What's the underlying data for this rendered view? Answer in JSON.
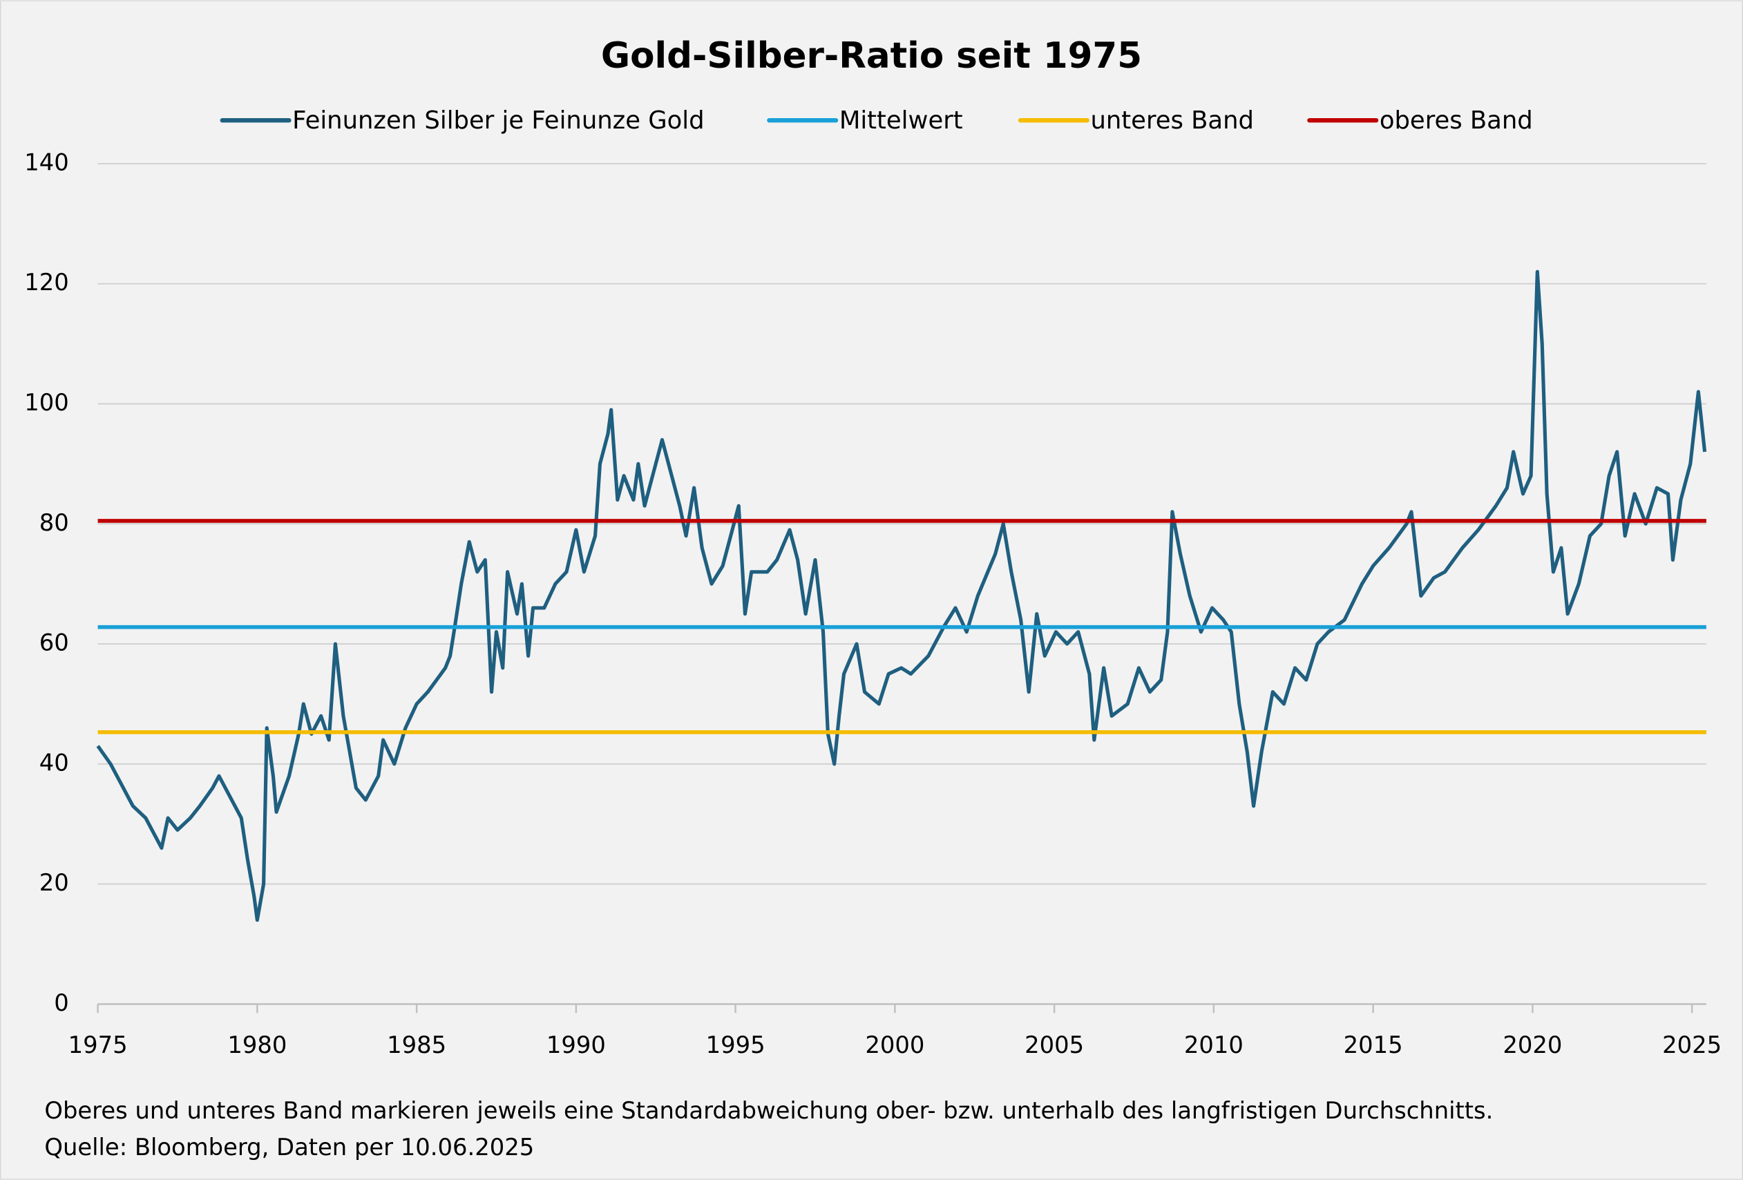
{
  "chart_data": {
    "type": "line",
    "title": "Gold-Silber-Ratio seit 1975",
    "notes": [
      "Oberes und unteres Band markieren jeweils eine Standardabweichung ober- bzw. unterhalb des langfristigen Durchschnitts.",
      "Quelle: Bloomberg, Daten per 10.06.2025"
    ],
    "x": [
      1975.0,
      1975.4,
      1975.8,
      1976.1,
      1976.5,
      1977.0,
      1977.2,
      1977.5,
      1977.9,
      1978.2,
      1978.6,
      1978.8,
      1979.3,
      1979.5,
      1979.7,
      1979.9,
      1980.0,
      1980.2,
      1980.3,
      1980.5,
      1980.6,
      1981.0,
      1981.3,
      1981.45,
      1981.7,
      1982.0,
      1982.25,
      1982.45,
      1982.7,
      1982.9,
      1983.1,
      1983.4,
      1983.8,
      1983.95,
      1984.3,
      1984.65,
      1985.0,
      1985.35,
      1985.9,
      1986.05,
      1986.2,
      1986.4,
      1986.65,
      1986.9,
      1987.15,
      1987.35,
      1987.5,
      1987.7,
      1987.85,
      1988.15,
      1988.3,
      1988.5,
      1988.65,
      1989.0,
      1989.35,
      1989.7,
      1990.0,
      1990.25,
      1990.6,
      1990.75,
      1991.0,
      1991.1,
      1991.3,
      1991.5,
      1991.8,
      1991.95,
      1992.15,
      1992.5,
      1992.7,
      1993.0,
      1993.25,
      1993.45,
      1993.7,
      1993.95,
      1994.25,
      1994.6,
      1994.95,
      1995.1,
      1995.3,
      1995.5,
      1996.0,
      1996.3,
      1996.7,
      1996.95,
      1997.2,
      1997.5,
      1997.75,
      1997.9,
      1998.1,
      1998.25,
      1998.4,
      1998.8,
      1999.05,
      1999.5,
      1999.8,
      2000.2,
      2000.5,
      2001.05,
      2001.55,
      2001.9,
      2002.25,
      2002.6,
      2003.15,
      2003.4,
      2003.65,
      2003.95,
      2004.2,
      2004.45,
      2004.7,
      2005.05,
      2005.4,
      2005.75,
      2006.1,
      2006.25,
      2006.55,
      2006.8,
      2007.3,
      2007.65,
      2008.0,
      2008.35,
      2008.55,
      2008.7,
      2008.95,
      2009.25,
      2009.6,
      2009.95,
      2010.3,
      2010.55,
      2010.8,
      2011.05,
      2011.25,
      2011.5,
      2011.85,
      2012.2,
      2012.55,
      2012.9,
      2013.25,
      2013.6,
      2014.1,
      2014.65,
      2015.0,
      2015.5,
      2016.05,
      2016.2,
      2016.5,
      2016.9,
      2017.25,
      2017.8,
      2018.3,
      2018.85,
      2019.2,
      2019.4,
      2019.7,
      2019.95,
      2020.15,
      2020.3,
      2020.45,
      2020.65,
      2020.9,
      2021.1,
      2021.45,
      2021.8,
      2022.15,
      2022.4,
      2022.65,
      2022.9,
      2023.2,
      2023.55,
      2023.9,
      2024.25,
      2024.4,
      2024.65,
      2024.95,
      2025.2,
      2025.4
    ],
    "series": [
      {
        "name": "Feinunzen Silber je Feinunze Gold",
        "color": "#1f5f80",
        "values": [
          43,
          40,
          36,
          33,
          31,
          26,
          31,
          29,
          31,
          33,
          36,
          38,
          33,
          31,
          24,
          18,
          14,
          20,
          46,
          38,
          32,
          38,
          45,
          50,
          45,
          48,
          44,
          60,
          48,
          42,
          36,
          34,
          38,
          44,
          40,
          46,
          50,
          52,
          56,
          58,
          63,
          70,
          77,
          72,
          74,
          52,
          62,
          56,
          72,
          65,
          70,
          58,
          66,
          66,
          70,
          72,
          79,
          72,
          78,
          90,
          95,
          99,
          84,
          88,
          84,
          90,
          83,
          90,
          94,
          88,
          83,
          78,
          86,
          76,
          70,
          73,
          80,
          83,
          65,
          72,
          72,
          74,
          79,
          74,
          65,
          74,
          62,
          45,
          40,
          48,
          55,
          60,
          52,
          50,
          55,
          56,
          55,
          58,
          63,
          66,
          62,
          68,
          75,
          80,
          72,
          64,
          52,
          65,
          58,
          62,
          60,
          62,
          55,
          44,
          56,
          48,
          50,
          56,
          52,
          54,
          62,
          82,
          75,
          68,
          62,
          66,
          64,
          62,
          50,
          42,
          33,
          42,
          52,
          50,
          56,
          54,
          60,
          62,
          64,
          70,
          73,
          76,
          80,
          82,
          68,
          71,
          72,
          76,
          79,
          83,
          86,
          92,
          85,
          88,
          122,
          110,
          85,
          72,
          76,
          65,
          70,
          78,
          80,
          88,
          92,
          78,
          85,
          80,
          86,
          85,
          74,
          84,
          90,
          102,
          92
        ]
      },
      {
        "name": "Mittelwert",
        "color": "#1aa0d8",
        "value": 62.8
      },
      {
        "name": "unteres Band",
        "color": "#f5bc00",
        "value": 45.3
      },
      {
        "name": "oberes Band",
        "color": "#c00000",
        "value": 80.5
      }
    ],
    "xlim": [
      1975,
      2025.45
    ],
    "xticks": [
      1975,
      1980,
      1985,
      1990,
      1995,
      2000,
      2005,
      2010,
      2015,
      2020,
      2025
    ],
    "ylim": [
      0,
      140
    ],
    "yticks": [
      0,
      20,
      40,
      60,
      80,
      100,
      120,
      140
    ],
    "grid": true
  }
}
